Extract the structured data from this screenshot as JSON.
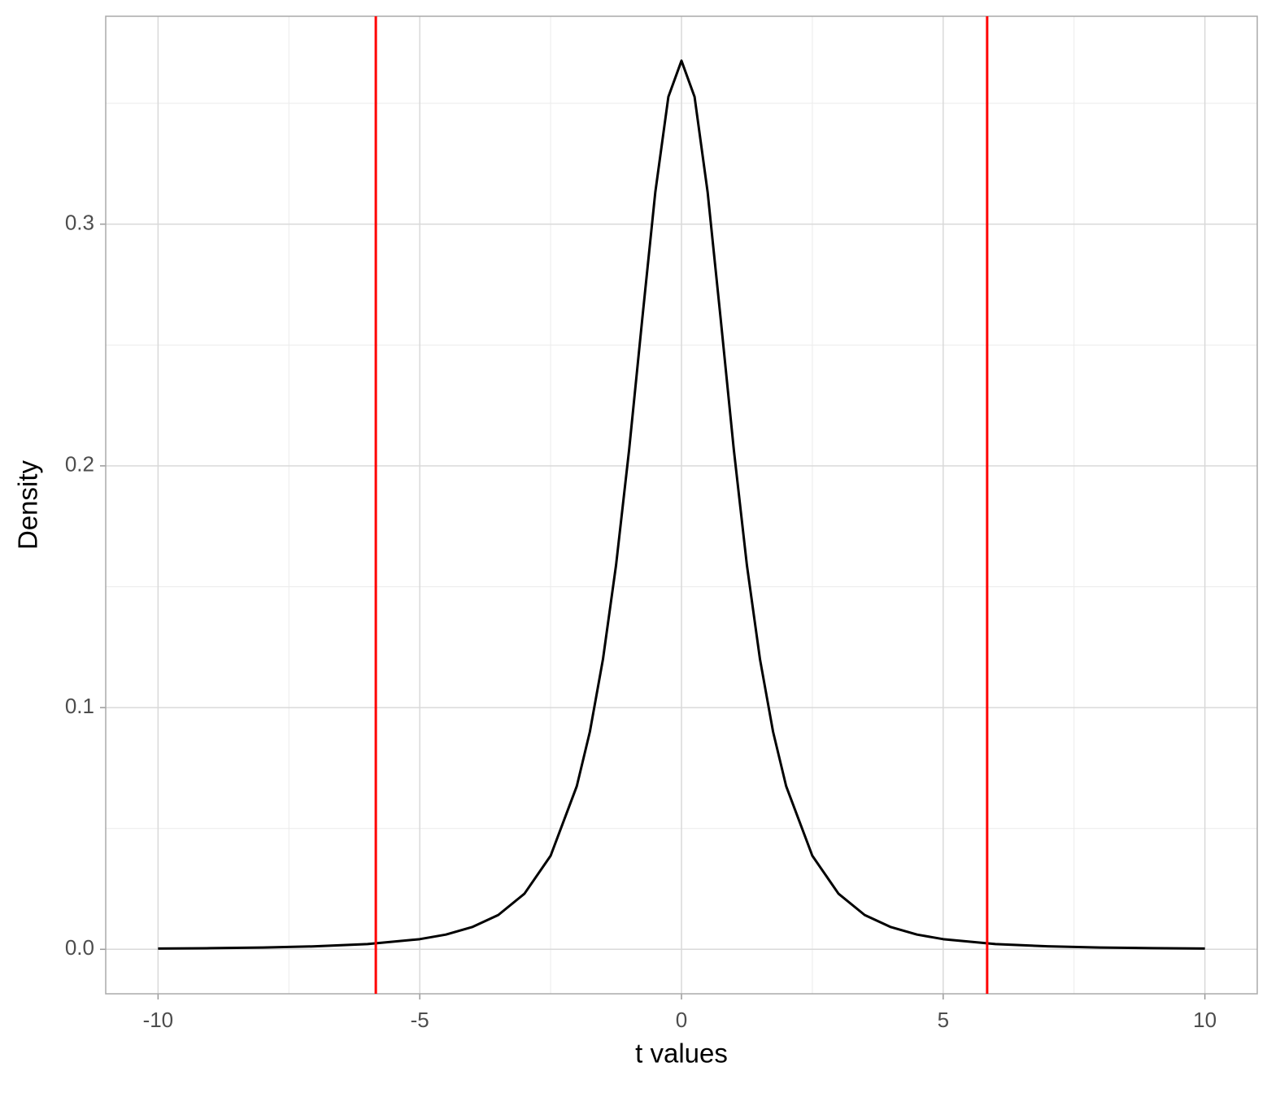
{
  "chart_data": {
    "type": "line",
    "x_label": "t values",
    "y_label": "Density",
    "x": [
      -10,
      -9,
      -8,
      -7,
      -6,
      -5,
      -4.5,
      -4,
      -3.5,
      -3,
      -2.5,
      -2,
      -1.75,
      -1.5,
      -1.25,
      -1,
      -0.75,
      -0.5,
      -0.25,
      0,
      0.25,
      0.5,
      0.75,
      1,
      1.25,
      1.5,
      1.75,
      2,
      2.5,
      3,
      3.5,
      4,
      4.5,
      5,
      6,
      7,
      8,
      9,
      10
    ],
    "series": [
      {
        "color": "#000000",
        "values": [
          0.00031,
          0.00047,
          0.00074,
          0.00122,
          0.00217,
          0.0042,
          0.0061,
          0.0092,
          0.0142,
          0.023,
          0.0387,
          0.0675,
          0.09,
          0.12,
          0.1589,
          0.2067,
          0.2606,
          0.3132,
          0.3527,
          0.3676,
          0.3527,
          0.3132,
          0.2606,
          0.2067,
          0.1589,
          0.12,
          0.09,
          0.0675,
          0.0387,
          0.023,
          0.0142,
          0.0092,
          0.0061,
          0.0042,
          0.00217,
          0.00122,
          0.00074,
          0.00047,
          0.00031
        ]
      }
    ],
    "vlines": [
      -5.84,
      5.84
    ],
    "vline_color": "#ff0000",
    "xlim": [
      -11,
      11
    ],
    "ylim": [
      -0.0184,
      0.386
    ],
    "xticks": [
      -10,
      -5,
      0,
      5,
      10
    ],
    "yticks": [
      {
        "value": 0,
        "label": "0.0"
      },
      0.1,
      0.2,
      0.3
    ],
    "grid": true
  }
}
